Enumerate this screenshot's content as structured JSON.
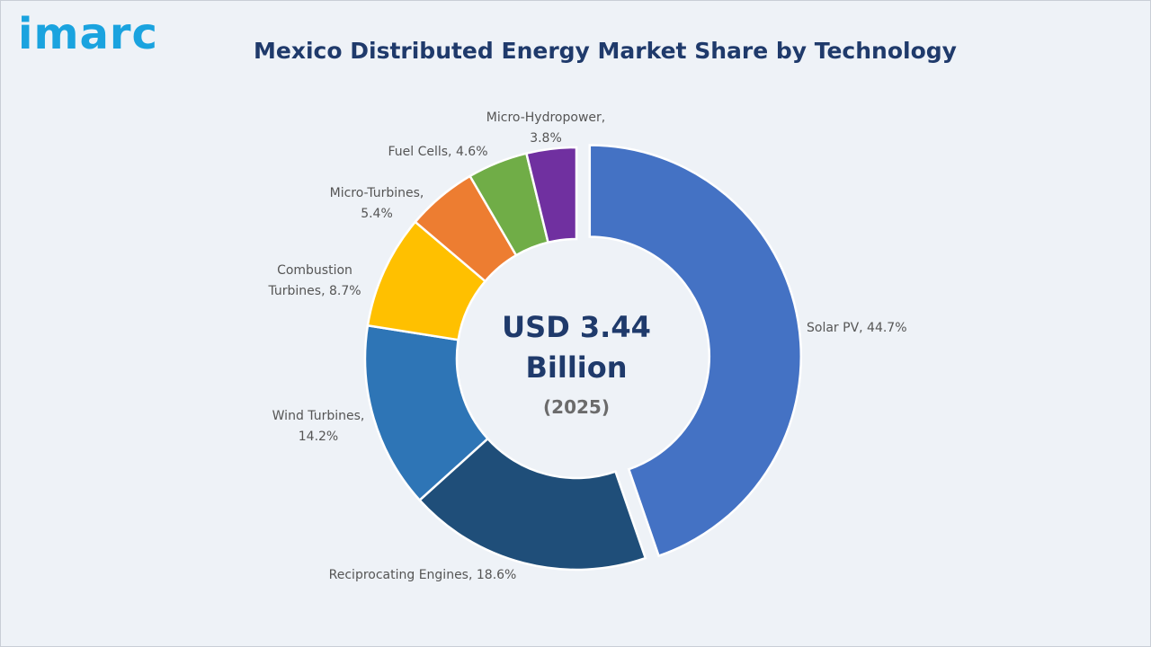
{
  "brand": {
    "logo_text": "imarc",
    "color": "#1aa3df"
  },
  "title": "Mexico Distributed Energy Market Share by Technology",
  "center": {
    "line1": "USD 3.44",
    "line2": "Billion",
    "year": "(2025)"
  },
  "chart_data": {
    "type": "pie",
    "title": "Mexico Distributed Energy Market Share by Technology",
    "unit": "%",
    "categories": [
      "Solar PV",
      "Reciprocating Engines",
      "Wind Turbines",
      "Combustion Turbines",
      "Micro-Turbines",
      "Fuel Cells",
      "Micro-Hydropower"
    ],
    "values": [
      44.7,
      18.6,
      14.2,
      8.7,
      5.4,
      4.6,
      3.8
    ],
    "colors": [
      "#4472c4",
      "#1f4e79",
      "#2e75b6",
      "#ffc000",
      "#ed7d31",
      "#70ad47",
      "#7030a0"
    ],
    "labels": [
      [
        "Solar PV, 44.7%"
      ],
      [
        "Reciprocating Engines, 18.6%"
      ],
      [
        "Wind Turbines,",
        "14.2%"
      ],
      [
        "Combustion",
        "Turbines, 8.7%"
      ],
      [
        "Micro-Turbines,",
        "5.4%"
      ],
      [
        "Fuel Cells, 4.6%"
      ],
      [
        "Micro-Hydropower,",
        "3.8%"
      ]
    ]
  }
}
